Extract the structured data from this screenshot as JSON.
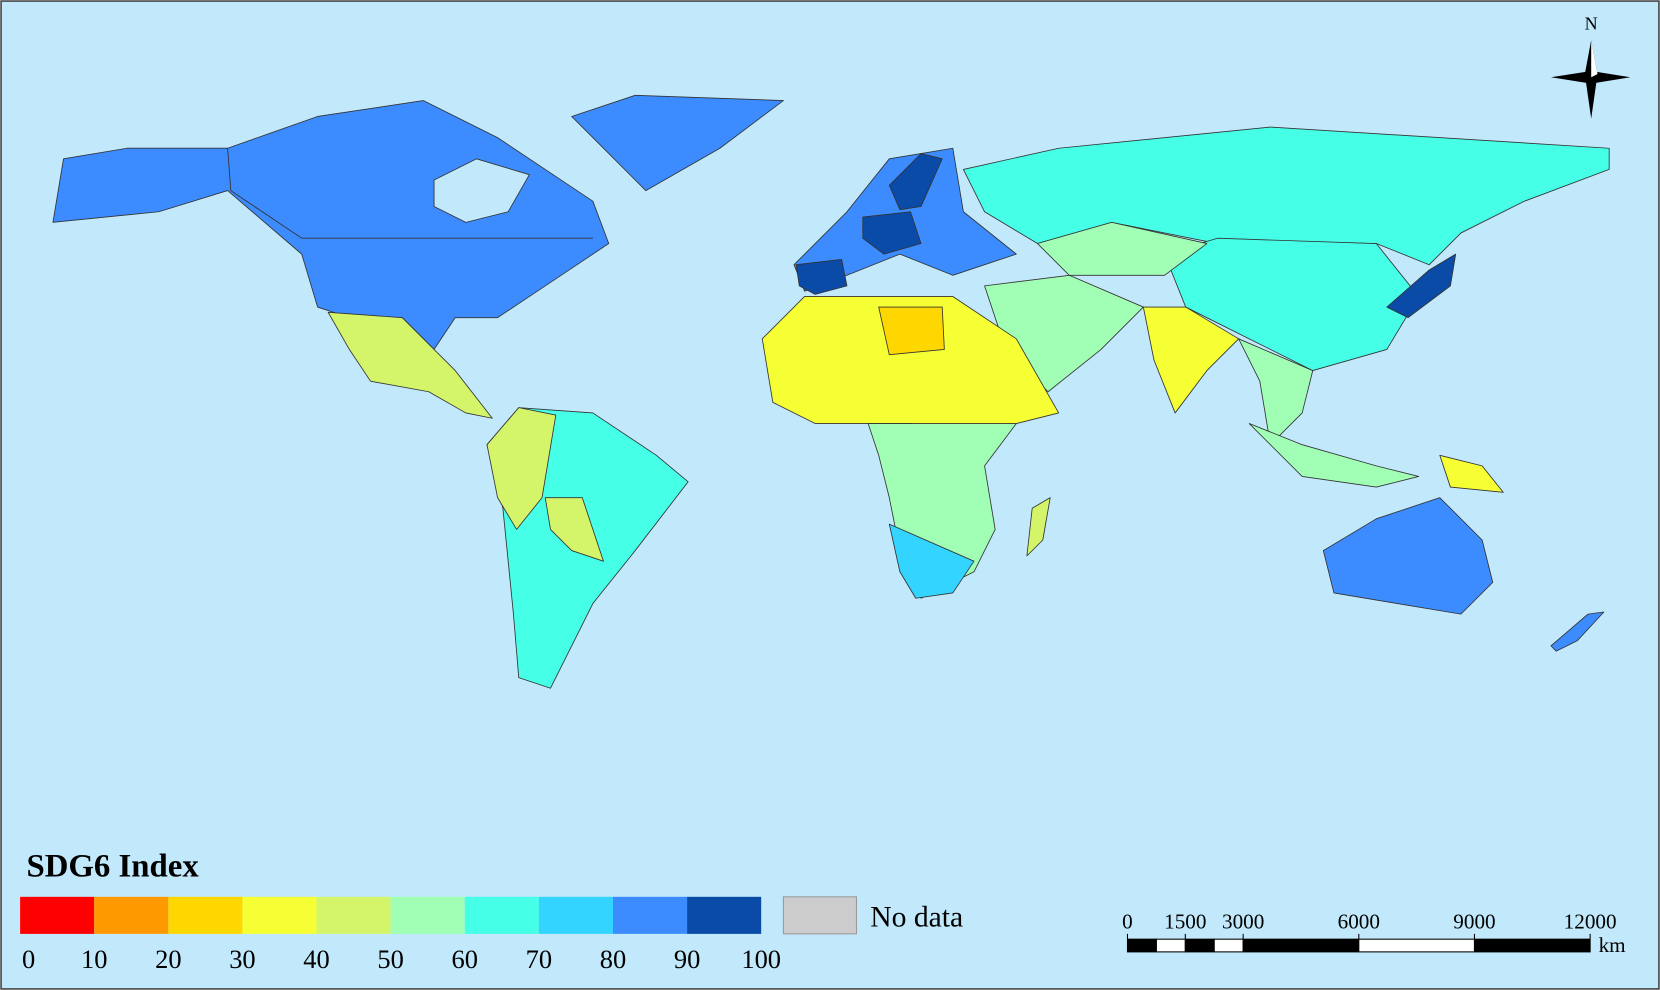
{
  "legend": {
    "title": "SDG6 Index",
    "breaks": [
      0,
      10,
      20,
      30,
      40,
      50,
      60,
      70,
      80,
      90,
      100
    ],
    "colors": [
      "#ff0000",
      "#ff9900",
      "#ffd700",
      "#f5ff33",
      "#d4f56a",
      "#a0ffb4",
      "#45ffe6",
      "#33d4ff",
      "#3c8cff",
      "#0a4ba8"
    ],
    "no_data": {
      "label": "No data",
      "color": "#cccccc"
    }
  },
  "scale_bar": {
    "ticks": [
      0,
      1500,
      3000,
      6000,
      9000,
      12000
    ],
    "unit": "km"
  },
  "north_arrow": {
    "label": "N"
  }
}
